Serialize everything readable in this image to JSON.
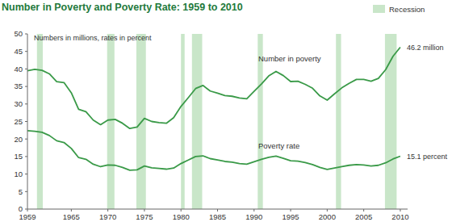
{
  "chart_data": {
    "type": "line",
    "title": "Number in Poverty and Poverty Rate: 1959 to 2010",
    "subtitle": "Numbers in millions, rates in percent",
    "x": [
      1959,
      1960,
      1961,
      1962,
      1963,
      1964,
      1965,
      1966,
      1967,
      1968,
      1969,
      1970,
      1971,
      1972,
      1973,
      1974,
      1975,
      1976,
      1977,
      1978,
      1979,
      1980,
      1981,
      1982,
      1983,
      1984,
      1985,
      1986,
      1987,
      1988,
      1989,
      1990,
      1991,
      1992,
      1993,
      1994,
      1995,
      1996,
      1997,
      1998,
      1999,
      2000,
      2001,
      2002,
      2003,
      2004,
      2005,
      2006,
      2007,
      2008,
      2009,
      2010
    ],
    "series": [
      {
        "name": "Number in poverty",
        "color": "#3a9a48",
        "values": [
          39.5,
          39.9,
          39.6,
          38.6,
          36.4,
          36.1,
          33.2,
          28.5,
          27.8,
          25.4,
          24.1,
          25.4,
          25.6,
          24.5,
          23.0,
          23.4,
          25.9,
          25.0,
          24.7,
          24.5,
          26.1,
          29.3,
          31.8,
          34.4,
          35.3,
          33.7,
          33.1,
          32.4,
          32.2,
          31.7,
          31.5,
          33.6,
          35.7,
          38.0,
          39.3,
          38.1,
          36.4,
          36.5,
          35.6,
          34.5,
          32.3,
          31.1,
          32.9,
          34.6,
          35.9,
          37.0,
          37.0,
          36.5,
          37.3,
          39.8,
          43.6,
          46.2
        ],
        "value_labels": [
          null,
          null,
          null,
          null,
          null,
          null,
          null,
          null,
          null,
          null,
          null,
          null,
          null,
          null,
          null,
          null,
          null,
          null,
          null,
          null,
          null,
          null,
          null,
          null,
          null,
          null,
          null,
          null,
          null,
          null,
          null,
          null,
          null,
          null,
          null,
          null,
          null,
          null,
          null,
          null,
          null,
          null,
          null,
          null,
          null,
          null,
          null,
          null,
          null,
          null,
          null,
          "46.2 million"
        ]
      },
      {
        "name": "Poverty rate",
        "color": "#3a9a48",
        "values": [
          22.4,
          22.2,
          21.9,
          21.0,
          19.5,
          19.0,
          17.3,
          14.7,
          14.2,
          12.8,
          12.1,
          12.6,
          12.5,
          11.9,
          11.1,
          11.2,
          12.3,
          11.8,
          11.6,
          11.4,
          11.7,
          13.0,
          14.0,
          15.0,
          15.2,
          14.4,
          14.0,
          13.6,
          13.4,
          13.0,
          12.8,
          13.5,
          14.2,
          14.8,
          15.1,
          14.5,
          13.8,
          13.7,
          13.3,
          12.7,
          11.9,
          11.3,
          11.7,
          12.1,
          12.5,
          12.7,
          12.6,
          12.3,
          12.5,
          13.2,
          14.3,
          15.1
        ],
        "value_labels": [
          null,
          null,
          null,
          null,
          null,
          null,
          null,
          null,
          null,
          null,
          null,
          null,
          null,
          null,
          null,
          null,
          null,
          null,
          null,
          null,
          null,
          null,
          null,
          null,
          null,
          null,
          null,
          null,
          null,
          null,
          null,
          null,
          null,
          null,
          null,
          null,
          null,
          null,
          null,
          null,
          null,
          null,
          null,
          null,
          null,
          null,
          null,
          null,
          null,
          null,
          null,
          "15.1 percent"
        ]
      }
    ],
    "recession": {
      "name": "Recession",
      "color": "#c9e6c9",
      "start": [
        1960.3,
        1969.9,
        1973.9,
        1980.0,
        1981.5,
        1990.5,
        2001.2,
        2007.9
      ],
      "end": [
        1961.1,
        1970.9,
        1975.2,
        1980.5,
        1982.9,
        1991.2,
        2001.9,
        2009.5
      ]
    },
    "xlim": [
      1959,
      2011
    ],
    "xticks": [
      1959,
      1965,
      1970,
      1975,
      1980,
      1985,
      1990,
      1995,
      2000,
      2005,
      2010
    ],
    "ylim": [
      0,
      50
    ],
    "yticks": [
      0,
      5,
      10,
      15,
      20,
      25,
      30,
      35,
      40,
      45,
      50
    ],
    "grid": false,
    "legend": "top-right"
  }
}
